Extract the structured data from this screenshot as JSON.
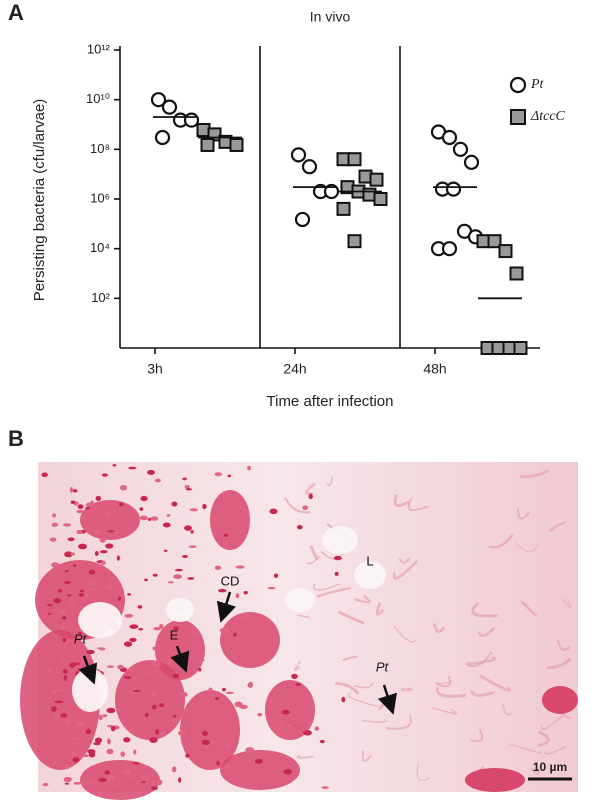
{
  "panel_labels": [
    "A",
    "B"
  ],
  "chart_data": {
    "type": "dotplot",
    "title": "In vivo",
    "x_label": "Time after infection",
    "y_label": "Persisting bacteria (cfu/larvae)",
    "categories": [
      "3h",
      "24h",
      "48h"
    ],
    "log_y": true,
    "ylim": [
      1,
      1000000000000
    ],
    "yticks": [
      {
        "value": 100,
        "label": "10²"
      },
      {
        "value": 10000,
        "label": "10⁴"
      },
      {
        "value": 1000000,
        "label": "10⁶"
      },
      {
        "value": 100000000,
        "label": "10⁸"
      },
      {
        "value": 10000000000,
        "label": "10¹⁰"
      },
      {
        "value": 1000000000000,
        "label": "10¹²"
      }
    ],
    "legend": "right-top",
    "series": [
      {
        "name": "Pt",
        "marker": "circle",
        "color": "#ffffff",
        "values": [
          [
            10000000000,
            5000000000,
            1500000000,
            1500000000,
            300000000
          ],
          [
            60000000,
            20000000,
            2000000,
            2000000,
            150000
          ],
          [
            500000000,
            300000000,
            100000000,
            30000000,
            2500000,
            2500000,
            50000,
            30000,
            10000,
            10000
          ]
        ],
        "medians": [
          2000000000,
          3000000,
          3000000
        ]
      },
      {
        "name": "ΔtccC",
        "marker": "square",
        "color": "#999999",
        "values": [
          [
            600000000,
            400000000,
            200000000,
            150000000,
            150000000
          ],
          [
            40000000,
            40000000,
            8000000,
            6000000,
            3000000,
            2000000,
            1500000,
            1000000,
            400000,
            20000
          ],
          [
            20000,
            20000,
            8000,
            1000,
            0,
            0,
            0,
            0
          ]
        ],
        "medians": [
          300000000,
          2000000,
          100
        ]
      }
    ]
  },
  "micrograph": {
    "annotations": [
      "L",
      "CD",
      "E",
      "Pt",
      "Pt"
    ],
    "scale_bar": "10 µm"
  }
}
